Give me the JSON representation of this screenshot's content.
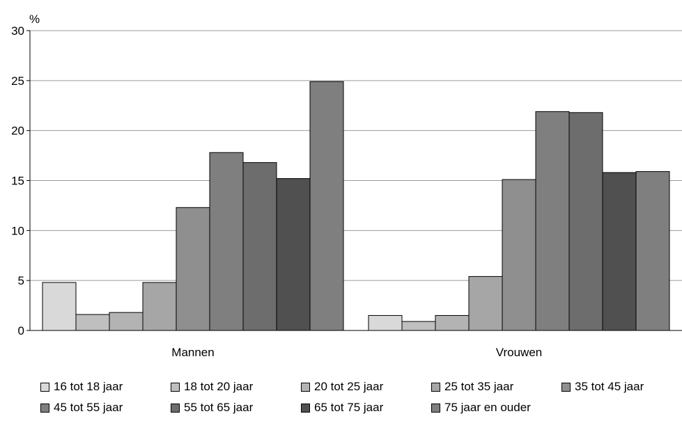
{
  "chart_data": {
    "type": "bar",
    "title": "",
    "xlabel": "",
    "ylabel": "%",
    "ylim": [
      0,
      30
    ],
    "yticks": [
      "0",
      "5",
      "10",
      "15",
      "20",
      "25",
      "30"
    ],
    "grid": true,
    "legend_position": "bottom",
    "categories": [
      "Mannen",
      "Vrouwen"
    ],
    "series": [
      {
        "name": "16 tot 18 jaar",
        "color": "#d9d9d9",
        "values": [
          4.8,
          1.5
        ]
      },
      {
        "name": "18 tot 20 jaar",
        "color": "#bfbfbf",
        "values": [
          1.6,
          0.9
        ]
      },
      {
        "name": "20 tot 25 jaar",
        "color": "#b3b3b3",
        "values": [
          1.8,
          1.5
        ]
      },
      {
        "name": "25 tot 35 jaar",
        "color": "#a6a6a6",
        "values": [
          4.8,
          5.4
        ]
      },
      {
        "name": "35 tot 45 jaar",
        "color": "#8f8f8f",
        "values": [
          12.3,
          15.1
        ]
      },
      {
        "name": "45 tot 55 jaar",
        "color": "#7f7f7f",
        "values": [
          17.8,
          21.9
        ]
      },
      {
        "name": "55 tot 65 jaar",
        "color": "#6d6d6d",
        "values": [
          16.8,
          21.8
        ]
      },
      {
        "name": "65 tot 75 jaar",
        "color": "#505050",
        "values": [
          15.2,
          15.8
        ]
      },
      {
        "name": "75 jaar en ouder",
        "color": "#7f7f7f",
        "values": [
          24.9,
          15.9
        ]
      }
    ]
  }
}
